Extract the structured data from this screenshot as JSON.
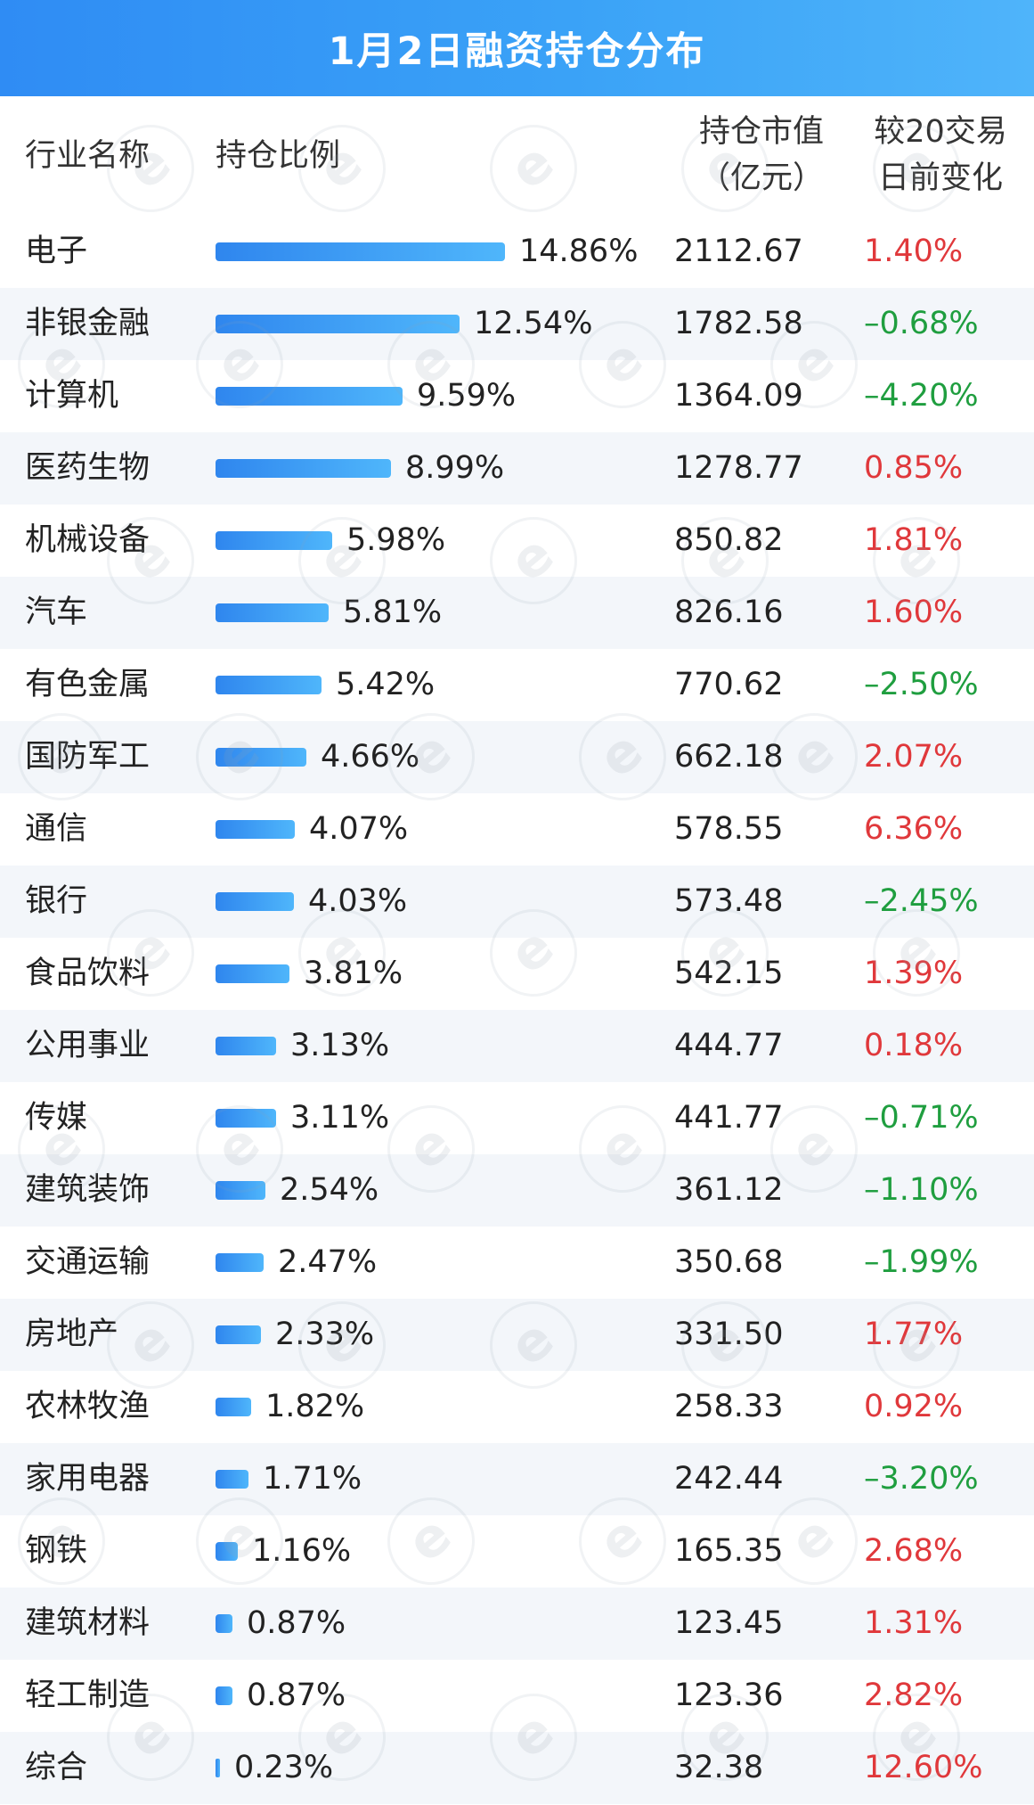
{
  "title": "1月2日融资持仓分布",
  "headers": {
    "industry": "行业名称",
    "ratio": "持仓比例",
    "value_line1": "持仓市值",
    "value_line2": "（亿元）",
    "change_line1": "较20交易",
    "change_line2": "日前变化"
  },
  "colors": {
    "up": "#e0383b",
    "down": "#1f9e3f",
    "bar": "#3b9cf5",
    "title_bg": "#2f8cf4"
  },
  "watermark_glyph": "e",
  "rows": [
    {
      "name": "电子",
      "ratio": "14.86%",
      "ratio_value": 14.86,
      "value": "2112.67",
      "change": "1.40%",
      "direction": "up"
    },
    {
      "name": "非银金融",
      "ratio": "12.54%",
      "ratio_value": 12.54,
      "value": "1782.58",
      "change": "–0.68%",
      "direction": "down"
    },
    {
      "name": "计算机",
      "ratio": "9.59%",
      "ratio_value": 9.59,
      "value": "1364.09",
      "change": "–4.20%",
      "direction": "down"
    },
    {
      "name": "医药生物",
      "ratio": "8.99%",
      "ratio_value": 8.99,
      "value": "1278.77",
      "change": "0.85%",
      "direction": "up"
    },
    {
      "name": "机械设备",
      "ratio": "5.98%",
      "ratio_value": 5.98,
      "value": "850.82",
      "change": "1.81%",
      "direction": "up"
    },
    {
      "name": "汽车",
      "ratio": "5.81%",
      "ratio_value": 5.81,
      "value": "826.16",
      "change": "1.60%",
      "direction": "up"
    },
    {
      "name": "有色金属",
      "ratio": "5.42%",
      "ratio_value": 5.42,
      "value": "770.62",
      "change": "–2.50%",
      "direction": "down"
    },
    {
      "name": "国防军工",
      "ratio": "4.66%",
      "ratio_value": 4.66,
      "value": "662.18",
      "change": "2.07%",
      "direction": "up"
    },
    {
      "name": "通信",
      "ratio": "4.07%",
      "ratio_value": 4.07,
      "value": "578.55",
      "change": "6.36%",
      "direction": "up"
    },
    {
      "name": "银行",
      "ratio": "4.03%",
      "ratio_value": 4.03,
      "value": "573.48",
      "change": "–2.45%",
      "direction": "down"
    },
    {
      "name": "食品饮料",
      "ratio": "3.81%",
      "ratio_value": 3.81,
      "value": "542.15",
      "change": "1.39%",
      "direction": "up"
    },
    {
      "name": "公用事业",
      "ratio": "3.13%",
      "ratio_value": 3.13,
      "value": "444.77",
      "change": "0.18%",
      "direction": "up"
    },
    {
      "name": "传媒",
      "ratio": "3.11%",
      "ratio_value": 3.11,
      "value": "441.77",
      "change": "–0.71%",
      "direction": "down"
    },
    {
      "name": "建筑装饰",
      "ratio": "2.54%",
      "ratio_value": 2.54,
      "value": "361.12",
      "change": "–1.10%",
      "direction": "down"
    },
    {
      "name": "交通运输",
      "ratio": "2.47%",
      "ratio_value": 2.47,
      "value": "350.68",
      "change": "–1.99%",
      "direction": "down"
    },
    {
      "name": "房地产",
      "ratio": "2.33%",
      "ratio_value": 2.33,
      "value": "331.50",
      "change": "1.77%",
      "direction": "up"
    },
    {
      "name": "农林牧渔",
      "ratio": "1.82%",
      "ratio_value": 1.82,
      "value": "258.33",
      "change": "0.92%",
      "direction": "up"
    },
    {
      "name": "家用电器",
      "ratio": "1.71%",
      "ratio_value": 1.71,
      "value": "242.44",
      "change": "–3.20%",
      "direction": "down"
    },
    {
      "name": "钢铁",
      "ratio": "1.16%",
      "ratio_value": 1.16,
      "value": "165.35",
      "change": "2.68%",
      "direction": "up"
    },
    {
      "name": "建筑材料",
      "ratio": "0.87%",
      "ratio_value": 0.87,
      "value": "123.45",
      "change": "1.31%",
      "direction": "up"
    },
    {
      "name": "轻工制造",
      "ratio": "0.87%",
      "ratio_value": 0.87,
      "value": "123.36",
      "change": "2.82%",
      "direction": "up"
    },
    {
      "name": "综合",
      "ratio": "0.23%",
      "ratio_value": 0.23,
      "value": "32.38",
      "change": "12.60%",
      "direction": "up"
    }
  ]
}
